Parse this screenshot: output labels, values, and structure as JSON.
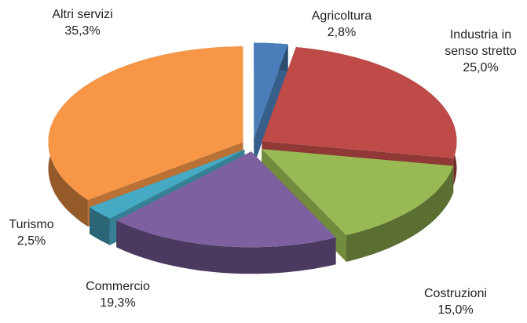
{
  "chart_data": {
    "type": "pie",
    "categories": [
      "Agricoltura",
      "Industria in senso stretto",
      "Costruzioni",
      "Commercio",
      "Turismo",
      "Altri servizi"
    ],
    "values": [
      2.8,
      25.0,
      15.0,
      19.3,
      2.5,
      35.3
    ],
    "value_labels": [
      "2,8%",
      "25,0%",
      "15,0%",
      "19,3%",
      "2,5%",
      "35,3%"
    ],
    "colors": [
      "#4a7ebb",
      "#be4b48",
      "#98b954",
      "#7d60a0",
      "#46aac5",
      "#f79646"
    ]
  }
}
